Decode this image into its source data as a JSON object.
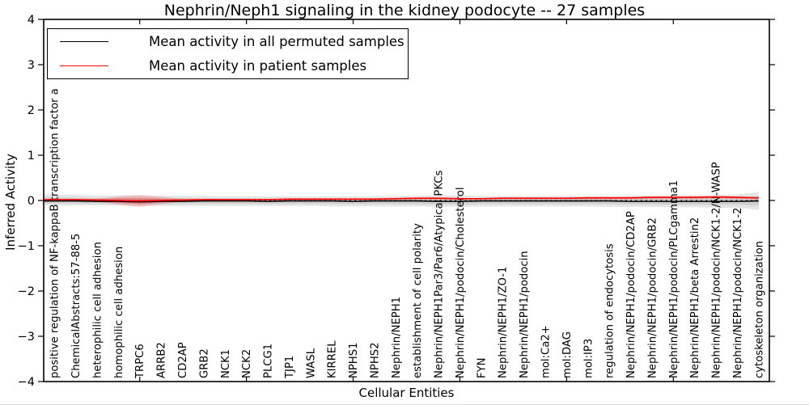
{
  "figure": {
    "title": "Nephrin/Neph1 signaling in the kidney podocyte -- 27 samples",
    "samples_count": 27
  },
  "legend": {
    "items": [
      {
        "label": "Mean activity in all permuted samples",
        "color": "#000000"
      },
      {
        "label": "Mean activity in patient samples",
        "color": "#ff0000"
      }
    ],
    "position": "upper left"
  },
  "axes": {
    "xlabel": "Cellular Entities",
    "ylabel": "Inferred Activity",
    "ylim": [
      -4,
      4
    ],
    "ytick_labels": [
      "4",
      "3",
      "2",
      "1",
      "0",
      "−1",
      "−2",
      "−3",
      "−4"
    ],
    "grid": false
  },
  "chart_data": {
    "type": "line",
    "title": "Nephrin/Neph1 signaling in the kidney podocyte -- 27 samples",
    "xlabel": "Cellular Entities",
    "ylabel": "Inferred Activity",
    "ylim": [
      -4,
      4
    ],
    "zero_line": "dotted",
    "legend_position": "upper left",
    "x_categories": [
      "positive regulation of NF-kappaB transcription factor a",
      "ChemicalAbstracts:57-88-5",
      "heterophilic cell adhesion",
      "homophilic cell adhesion",
      "TRPC6",
      "ARRB2",
      "CD2AP",
      "GRB2",
      "NCK1",
      "NCK2",
      "PLCG1",
      "TJP1",
      "WASL",
      "KIRREL",
      "NPHS1",
      "NPHS2",
      "Nephrin/NEPH1",
      "establishment of cell polarity",
      "Nephrin/NEPH1Par3/Par6/Atypical PKCs",
      "Nephrin/NEPH1/podocin/Cholesterol",
      "FYN",
      "Nephrin/NEPH1/ZO-1",
      "Nephrin/NEPH1/podocin",
      "mol:Ca2+",
      "mol:DAG",
      "mol:IP3",
      "regulation of endocytosis",
      "Nephrin/NEPH1/podocin/CD2AP",
      "Nephrin/NEPH1/podocin/GRB2",
      "Nephrin/NEPH1/podocin/PLCgamma1",
      "Nephrin/NEPH1/beta Arrestin2",
      "Nephrin/NEPH1/podocin/NCK1-2/N-WASP",
      "Nephrin/NEPH1/podocin/NCK1-2",
      "cytoskeleton organization"
    ],
    "series": [
      {
        "name": "Mean activity in all permuted samples",
        "color": "#000000",
        "values": [
          -0.01,
          -0.01,
          -0.02,
          -0.02,
          -0.03,
          -0.02,
          -0.02,
          -0.01,
          -0.01,
          -0.01,
          -0.02,
          -0.01,
          -0.01,
          -0.01,
          -0.02,
          -0.01,
          -0.01,
          -0.01,
          -0.02,
          -0.02,
          -0.01,
          -0.01,
          -0.01,
          -0.01,
          -0.01,
          -0.01,
          -0.01,
          -0.02,
          -0.02,
          -0.02,
          -0.02,
          -0.02,
          -0.02,
          -0.01
        ]
      },
      {
        "name": "Mean activity in patient samples",
        "color": "#ff0000",
        "values": [
          0.02,
          0.02,
          0.01,
          0.0,
          -0.01,
          0.0,
          0.01,
          0.02,
          0.02,
          0.02,
          0.02,
          0.03,
          0.03,
          0.03,
          0.03,
          0.03,
          0.04,
          0.05,
          0.05,
          0.04,
          0.04,
          0.05,
          0.05,
          0.05,
          0.05,
          0.06,
          0.06,
          0.06,
          0.07,
          0.07,
          0.07,
          0.08,
          0.07,
          0.06
        ]
      }
    ],
    "bands": [
      {
        "name": "permuted samples range",
        "series": 0,
        "color": "#000000",
        "upper": [
          0.13,
          0.12,
          0.11,
          0.11,
          0.11,
          0.1,
          0.1,
          0.1,
          0.09,
          0.09,
          0.09,
          0.09,
          0.09,
          0.09,
          0.09,
          0.09,
          0.1,
          0.1,
          0.11,
          0.11,
          0.1,
          0.1,
          0.1,
          0.1,
          0.1,
          0.1,
          0.1,
          0.11,
          0.11,
          0.11,
          0.12,
          0.12,
          0.13,
          0.19
        ],
        "lower": [
          -0.11,
          -0.11,
          -0.11,
          -0.11,
          -0.12,
          -0.12,
          -0.12,
          -0.12,
          -0.12,
          -0.12,
          -0.12,
          -0.12,
          -0.12,
          -0.13,
          -0.13,
          -0.13,
          -0.13,
          -0.13,
          -0.14,
          -0.14,
          -0.13,
          -0.13,
          -0.13,
          -0.13,
          -0.13,
          -0.13,
          -0.14,
          -0.14,
          -0.14,
          -0.15,
          -0.15,
          -0.16,
          -0.16,
          -0.21
        ]
      },
      {
        "name": "patient samples range",
        "series": 1,
        "color": "#ff0000",
        "upper": [
          0.03,
          0.03,
          0.04,
          0.09,
          0.12,
          0.08,
          0.04,
          0.03,
          0.03,
          0.03,
          0.03,
          0.03,
          0.03,
          0.03,
          0.03,
          0.03,
          0.04,
          0.04,
          0.04,
          0.04,
          0.04,
          0.04,
          0.04,
          0.04,
          0.04,
          0.05,
          0.05,
          0.05,
          0.06,
          0.06,
          0.06,
          0.07,
          0.06,
          0.05
        ],
        "lower": [
          -0.01,
          -0.01,
          -0.03,
          -0.09,
          -0.14,
          -0.08,
          -0.02,
          -0.01,
          -0.01,
          -0.01,
          -0.01,
          0.0,
          0.0,
          0.0,
          0.0,
          0.0,
          0.01,
          0.01,
          0.01,
          0.01,
          0.01,
          0.02,
          0.02,
          0.02,
          0.02,
          0.02,
          0.02,
          0.02,
          0.03,
          0.03,
          0.03,
          0.04,
          0.03,
          0.02
        ]
      }
    ]
  }
}
